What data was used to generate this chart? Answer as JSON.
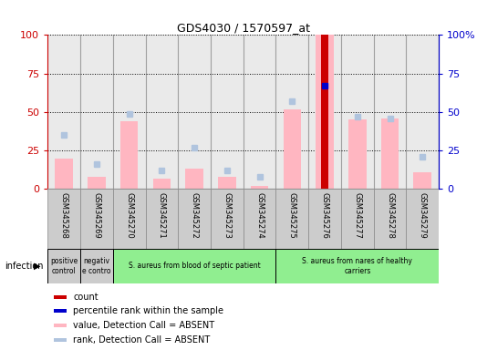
{
  "title": "GDS4030 / 1570597_at",
  "samples": [
    "GSM345268",
    "GSM345269",
    "GSM345270",
    "GSM345271",
    "GSM345272",
    "GSM345273",
    "GSM345274",
    "GSM345275",
    "GSM345276",
    "GSM345277",
    "GSM345278",
    "GSM345279"
  ],
  "bar_values_absent": [
    20,
    8,
    44,
    7,
    13,
    8,
    2,
    52,
    100,
    45,
    46,
    11
  ],
  "rank_values_absent": [
    35,
    16,
    49,
    12,
    27,
    12,
    8,
    57,
    67,
    47,
    46,
    21
  ],
  "count_values": [
    0,
    0,
    0,
    0,
    0,
    0,
    0,
    0,
    100,
    0,
    0,
    0
  ],
  "percentile_values": [
    0,
    0,
    0,
    0,
    0,
    0,
    0,
    0,
    67,
    0,
    0,
    0
  ],
  "group_data": [
    {
      "start": 0,
      "end": 0,
      "color": "#cccccc",
      "label": "positive\ncontrol"
    },
    {
      "start": 1,
      "end": 1,
      "color": "#cccccc",
      "label": "negativ\ne contro"
    },
    {
      "start": 2,
      "end": 6,
      "color": "#90ee90",
      "label": "S. aureus from blood of septic patient"
    },
    {
      "start": 7,
      "end": 11,
      "color": "#90ee90",
      "label": "S. aureus from nares of healthy\ncarriers"
    }
  ],
  "ylim": [
    0,
    100
  ],
  "y_ticks": [
    0,
    25,
    50,
    75,
    100
  ],
  "right_ytick_labels": [
    "0",
    "25",
    "50",
    "75",
    "100%"
  ],
  "infection_label": "infection",
  "legend_items": [
    {
      "label": "count",
      "color": "#cc0000"
    },
    {
      "label": "percentile rank within the sample",
      "color": "#0000cc"
    },
    {
      "label": "value, Detection Call = ABSENT",
      "color": "#ffb6c1"
    },
    {
      "label": "rank, Detection Call = ABSENT",
      "color": "#b0c4de"
    }
  ],
  "bar_color_absent": "#ffb6c1",
  "rank_color_absent": "#b0c4de",
  "count_color": "#cc0000",
  "percentile_color": "#0000cc",
  "axis_left_color": "#cc0000",
  "axis_right_color": "#0000cc",
  "col_bg_color": "#cccccc",
  "col_border_color": "#888888"
}
